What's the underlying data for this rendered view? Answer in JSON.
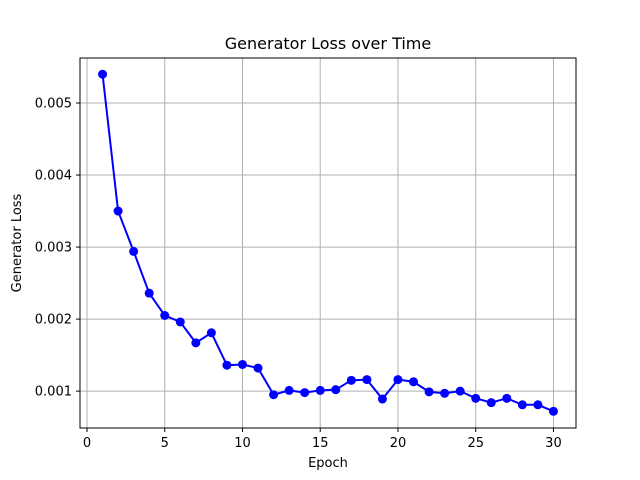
{
  "chart_data": {
    "type": "line",
    "title": "Generator Loss over Time",
    "xlabel": "Epoch",
    "ylabel": "Generator Loss",
    "xlim": [
      -0.45,
      31.45
    ],
    "ylim": [
      0.000488,
      0.005625
    ],
    "grid": true,
    "legend": "none",
    "x_ticks": [
      0,
      5,
      10,
      15,
      20,
      25,
      30
    ],
    "x_tick_labels": [
      "0",
      "5",
      "10",
      "15",
      "20",
      "25",
      "30"
    ],
    "y_ticks": [
      0.001,
      0.002,
      0.003,
      0.004,
      0.005
    ],
    "y_tick_labels": [
      "0.001",
      "0.002",
      "0.003",
      "0.004",
      "0.005"
    ],
    "series": [
      {
        "color": "#0000ff",
        "marker": "circle",
        "x": [
          1,
          2,
          3,
          4,
          5,
          6,
          7,
          8,
          9,
          10,
          11,
          12,
          13,
          14,
          15,
          16,
          17,
          18,
          19,
          20,
          21,
          22,
          23,
          24,
          25,
          26,
          27,
          28,
          29,
          30
        ],
        "values": [
          0.0054,
          0.0035,
          0.00294,
          0.00236,
          0.00205,
          0.00196,
          0.00167,
          0.00181,
          0.00136,
          0.00137,
          0.00132,
          0.00095,
          0.00101,
          0.00098,
          0.00101,
          0.00102,
          0.00115,
          0.00116,
          0.00089,
          0.00116,
          0.00113,
          0.00099,
          0.00097,
          0.001,
          0.0009,
          0.00084,
          0.0009,
          0.00081,
          0.00081,
          0.00072
        ]
      }
    ]
  }
}
